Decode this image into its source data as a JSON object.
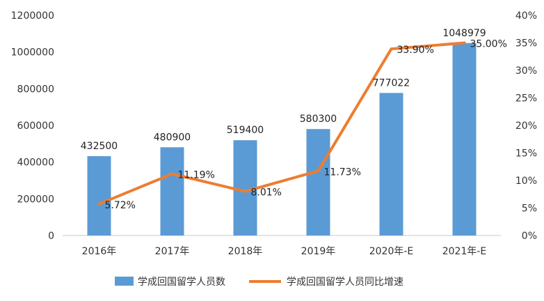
{
  "chart_data": {
    "type": "bar",
    "categories": [
      "2016年",
      "2017年",
      "2018年",
      "2019年",
      "2020年-E",
      "2021年-E"
    ],
    "series": [
      {
        "name": "学成回国留学人员数",
        "type": "bar",
        "axis": "left",
        "values": [
          432500,
          480900,
          519400,
          580300,
          777022,
          1048979
        ],
        "labels": [
          "432500",
          "480900",
          "519400",
          "580300",
          "777022",
          "1048979"
        ],
        "color": "#5B9BD5"
      },
      {
        "name": "学成回国留学人员同比增速",
        "type": "line",
        "axis": "right",
        "values": [
          5.72,
          11.19,
          8.01,
          11.73,
          33.9,
          35.0
        ],
        "labels": [
          "5.72%",
          "11.19%",
          "8.01%",
          "11.73%",
          "33.90%",
          "35.00%"
        ],
        "color": "#ED7D31"
      }
    ],
    "y_left": {
      "range": [
        0,
        1200000
      ],
      "ticks": [
        0,
        200000,
        400000,
        600000,
        800000,
        1000000,
        1200000
      ],
      "tick_labels": [
        "0",
        "200000",
        "400000",
        "600000",
        "800000",
        "1000000",
        "1200000"
      ]
    },
    "y_right": {
      "range": [
        0,
        40
      ],
      "ticks": [
        0,
        5,
        10,
        15,
        20,
        25,
        30,
        35,
        40
      ],
      "tick_labels": [
        "0%",
        "5%",
        "10%",
        "15%",
        "20%",
        "25%",
        "30%",
        "35%",
        "40%"
      ]
    },
    "grid": false,
    "legend": "bottom"
  }
}
